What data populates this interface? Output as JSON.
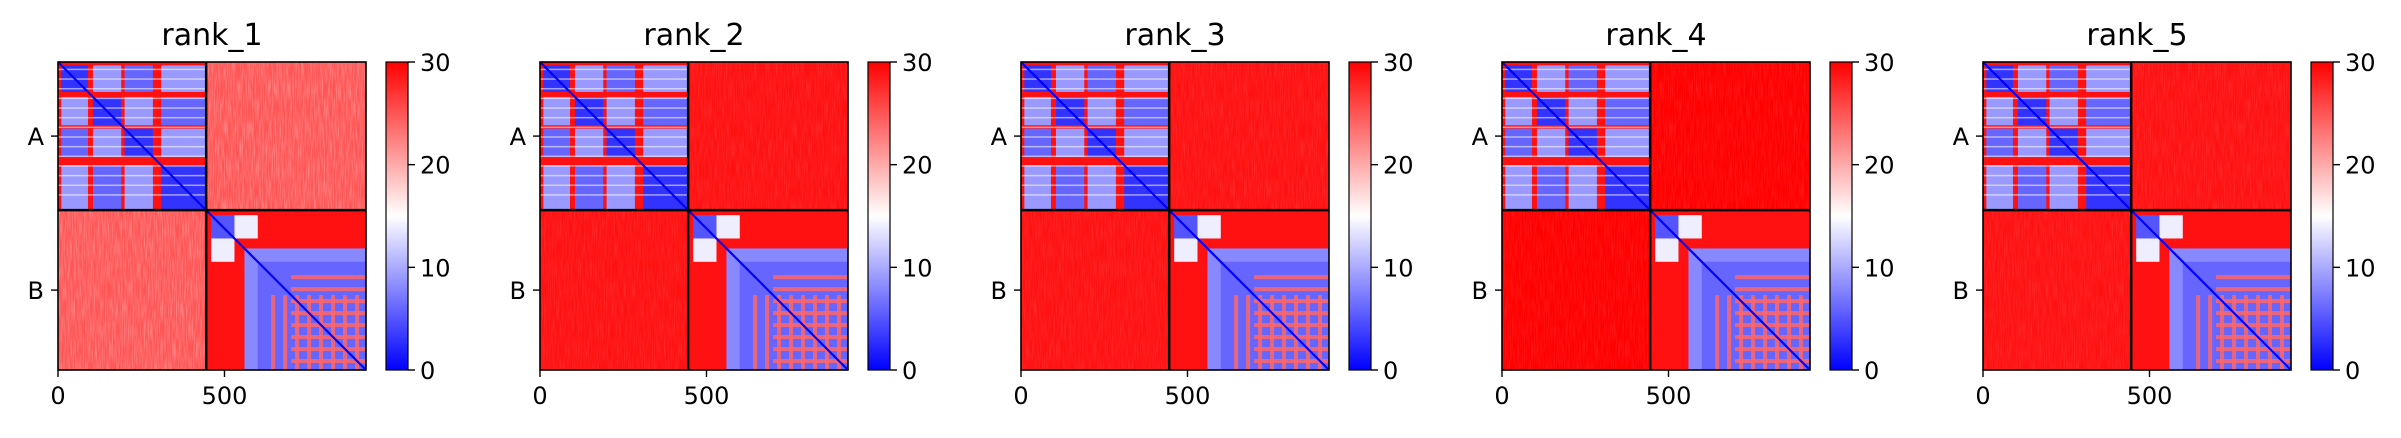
{
  "chart_data": [
    {
      "type": "heatmap",
      "title": "rank_1",
      "chains": [
        "A",
        "B"
      ],
      "chain_boundary": 445,
      "xlim": [
        0,
        925
      ],
      "xticks": [
        0,
        500
      ],
      "colorbar": {
        "min": 0,
        "max": 30,
        "ticks": [
          0,
          10,
          20,
          30
        ]
      },
      "colormap": [
        "#0000ff",
        "#ffffff",
        "#ff0000"
      ],
      "inter_chain_value": 25
    },
    {
      "type": "heatmap",
      "title": "rank_2",
      "chains": [
        "A",
        "B"
      ],
      "chain_boundary": 445,
      "xlim": [
        0,
        925
      ],
      "xticks": [
        0,
        500
      ],
      "colorbar": {
        "min": 0,
        "max": 30,
        "ticks": [
          0,
          10,
          20,
          30
        ]
      },
      "colormap": [
        "#0000ff",
        "#ffffff",
        "#ff0000"
      ],
      "inter_chain_value": 29
    },
    {
      "type": "heatmap",
      "title": "rank_3",
      "chains": [
        "A",
        "B"
      ],
      "chain_boundary": 445,
      "xlim": [
        0,
        925
      ],
      "xticks": [
        0,
        500
      ],
      "colorbar": {
        "min": 0,
        "max": 30,
        "ticks": [
          0,
          10,
          20,
          30
        ]
      },
      "colormap": [
        "#0000ff",
        "#ffffff",
        "#ff0000"
      ],
      "inter_chain_value": 29
    },
    {
      "type": "heatmap",
      "title": "rank_4",
      "chains": [
        "A",
        "B"
      ],
      "chain_boundary": 445,
      "xlim": [
        0,
        925
      ],
      "xticks": [
        0,
        500
      ],
      "colorbar": {
        "min": 0,
        "max": 30,
        "ticks": [
          0,
          10,
          20,
          30
        ]
      },
      "colormap": [
        "#0000ff",
        "#ffffff",
        "#ff0000"
      ],
      "inter_chain_value": 30
    },
    {
      "type": "heatmap",
      "title": "rank_5",
      "chains": [
        "A",
        "B"
      ],
      "chain_boundary": 445,
      "xlim": [
        0,
        925
      ],
      "xticks": [
        0,
        500
      ],
      "colorbar": {
        "min": 0,
        "max": 30,
        "ticks": [
          0,
          10,
          20,
          30
        ]
      },
      "colormap": [
        "#0000ff",
        "#ffffff",
        "#ff0000"
      ],
      "inter_chain_value": 29
    }
  ]
}
